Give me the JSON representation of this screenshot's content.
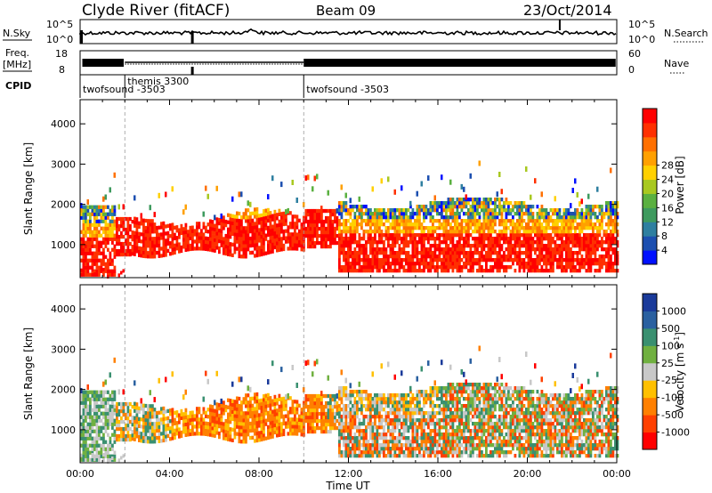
{
  "header": {
    "station": "Clyde River (fitACF)",
    "beam": "Beam 09",
    "date": "23/Oct/2014"
  },
  "status_panels": {
    "nsky": {
      "label": "N.Sky",
      "left_ticks": [
        "10^5",
        "10^0"
      ],
      "right_ticks": [
        "10^5",
        "10^0"
      ],
      "right_label": "N.Search"
    },
    "freq": {
      "label_line1": "Freq.",
      "label_line2": "[MHz]",
      "left_ticks": [
        "18",
        "8"
      ],
      "right_ticks": [
        "60",
        "0"
      ],
      "right_label": "Nave"
    },
    "cpid": {
      "label": "CPID",
      "programs": [
        {
          "name": "twofsound -3503",
          "start_hour": 0.0,
          "end_hour": 2.0
        },
        {
          "name": "themis 3300",
          "start_hour": 2.0,
          "end_hour": 10.0
        },
        {
          "name": "twofsound -3503",
          "start_hour": 10.0,
          "end_hour": 24.0
        }
      ]
    }
  },
  "chart_data": [
    {
      "type": "heatmap",
      "title": "",
      "quantity": "Power",
      "ylabel": "Slant Range [km]",
      "xlabel": "",
      "ylim": [
        180,
        4600
      ],
      "xlim": [
        0,
        24
      ],
      "yticks": [
        "1000",
        "2000",
        "3000",
        "4000"
      ],
      "colorbar": {
        "label": "Power [dB]",
        "ticks": [
          "4",
          "8",
          "12",
          "16",
          "20",
          "24",
          "28"
        ],
        "colors": [
          "#0010ff",
          "#1c4fb0",
          "#2e7fa0",
          "#3e9a5e",
          "#5ab040",
          "#a8c820",
          "#ffd000",
          "#ffa000",
          "#ff7000",
          "#ff3000",
          "#ff0000"
        ]
      }
    },
    {
      "type": "heatmap",
      "title": "",
      "quantity": "Velocity",
      "ylabel": "Slant Range [km]",
      "xlabel": "Time UT",
      "ylim": [
        180,
        4600
      ],
      "xlim": [
        0,
        24
      ],
      "xticks": [
        "00:00",
        "04:00",
        "08:00",
        "12:00",
        "16:00",
        "20:00",
        "00:00"
      ],
      "yticks": [
        "1000",
        "2000",
        "3000",
        "4000"
      ],
      "colorbar": {
        "label": "Velocity [m s",
        "label_sup": "-1",
        "label_end": "]",
        "ticks": [
          "1000",
          "500",
          "100",
          "25",
          "-25",
          "-100",
          "-500",
          "-1000"
        ],
        "colors": [
          "#1a3a9a",
          "#2a60a0",
          "#3a9070",
          "#70b040",
          "#c8c8c8",
          "#ffc000",
          "#ff8000",
          "#ff4000",
          "#ff0000"
        ]
      }
    }
  ]
}
